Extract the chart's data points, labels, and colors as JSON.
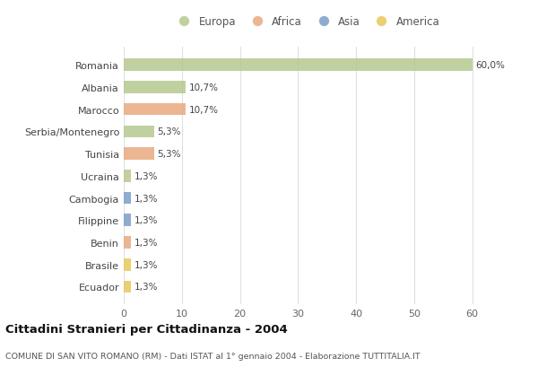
{
  "countries": [
    "Romania",
    "Albania",
    "Marocco",
    "Serbia/Montenegro",
    "Tunisia",
    "Ucraina",
    "Cambogia",
    "Filippine",
    "Benin",
    "Brasile",
    "Ecuador"
  ],
  "values": [
    60.0,
    10.7,
    10.7,
    5.3,
    5.3,
    1.3,
    1.3,
    1.3,
    1.3,
    1.3,
    1.3
  ],
  "labels": [
    "60,0%",
    "10,7%",
    "10,7%",
    "5,3%",
    "5,3%",
    "1,3%",
    "1,3%",
    "1,3%",
    "1,3%",
    "1,3%",
    "1,3%"
  ],
  "colors": [
    "#b5c98e",
    "#b5c98e",
    "#e8a97e",
    "#b5c98e",
    "#e8a97e",
    "#b5c98e",
    "#7b9ec7",
    "#7b9ec7",
    "#e8a97e",
    "#e8c85a",
    "#e8c85a"
  ],
  "legend_labels": [
    "Europa",
    "Africa",
    "Asia",
    "America"
  ],
  "legend_colors": [
    "#b5c98e",
    "#e8a97e",
    "#7b9ec7",
    "#e8c85a"
  ],
  "title": "Cittadini Stranieri per Cittadinanza - 2004",
  "subtitle": "COMUNE DI SAN VITO ROMANO (RM) - Dati ISTAT al 1° gennaio 2004 - Elaborazione TUTTITALIA.IT",
  "xlim": [
    0,
    63
  ],
  "xticks": [
    0,
    10,
    20,
    30,
    40,
    50,
    60
  ],
  "bg_color": "#ffffff",
  "plot_bg_color": "#ffffff",
  "grid_color": "#e0e0e0",
  "bar_height": 0.55,
  "bar_alpha": 0.85
}
